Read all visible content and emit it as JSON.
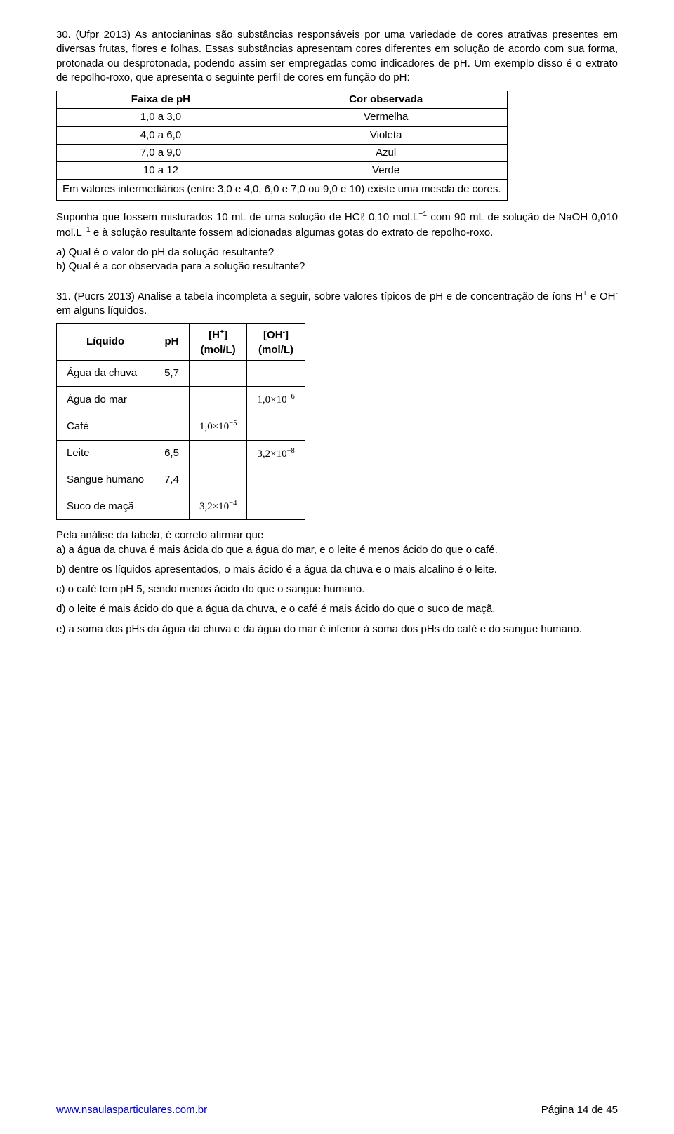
{
  "q30": {
    "heading": "30. (Ufpr 2013)  As antocianinas são substâncias responsáveis por uma variedade de cores atrativas presentes em diversas frutas, flores e folhas. Essas substâncias apresentam cores diferentes em solução de acordo com sua forma, protonada ou desprotonada, podendo assim ser empregadas como indicadores de pH. Um exemplo disso é o extrato de repolho-roxo, que apresenta o seguinte perfil de cores em função do pH:",
    "table": {
      "headers": [
        "Faixa de pH",
        "Cor observada"
      ],
      "rows": [
        [
          "1,0 a 3,0",
          "Vermelha"
        ],
        [
          "4,0 a 6,0",
          "Violeta"
        ],
        [
          "7,0 a 9,0",
          "Azul"
        ],
        [
          "10 a 12",
          "Verde"
        ]
      ],
      "note": "Em valores intermediários (entre 3,0 e 4,0, 6,0 e 7,0 ou 9,0 e 10) existe uma mescla de cores."
    },
    "after_table_p1a": "Suponha que fossem misturados 10 mL de uma solução de HCℓ 0,10 mol.L",
    "after_table_p1b": " com 90 mL de solução de NaOH 0,010 mol.L",
    "after_table_p1c": " e à solução resultante fossem adicionadas algumas gotas do extrato de repolho-roxo.",
    "qa": "a) Qual é o valor do pH da solução resultante?",
    "qb": "b) Qual é a cor observada para a solução resultante?"
  },
  "q31": {
    "heading_a": "31. ",
    "heading_b": "(Pucrs 2013)  Analise a tabela incompleta a seguir, sobre valores típicos de pH e de concentração de íons H",
    "heading_c": " e OH",
    "heading_d": " em alguns líquidos.",
    "table": {
      "headers": [
        "Líquido",
        "pH",
        "[H+]\n(mol/L)",
        "[OH-]\n(mol/L)"
      ],
      "rows": [
        {
          "name": "Água da chuva",
          "ph": "5,7",
          "h": "",
          "oh": ""
        },
        {
          "name": "Água do mar",
          "ph": "",
          "h": "",
          "oh": "1,0×10⁻⁶"
        },
        {
          "name": "Café",
          "ph": "",
          "h": "1,0×10⁻⁵",
          "oh": ""
        },
        {
          "name": "Leite",
          "ph": "6,5",
          "h": "",
          "oh": "3,2×10⁻⁸"
        },
        {
          "name": "Sangue humano",
          "ph": "7,4",
          "h": "",
          "oh": ""
        },
        {
          "name": "Suco de maçã",
          "ph": "",
          "h": "3,2×10⁻⁴",
          "oh": ""
        }
      ]
    },
    "after": "Pela análise da tabela, é correto afirmar que",
    "opts": {
      "a": "a) a água da chuva é mais ácida do que a água do mar, e o leite é menos ácido do que o café.",
      "b": "b) dentre os líquidos apresentados, o mais ácido é a água da chuva e o mais alcalino é o leite.",
      "c": "c) o café tem pH 5, sendo menos ácido do que o sangue humano.",
      "d": "d) o leite é mais ácido do que a água da chuva, e o café é mais ácido do que o suco de maçã.",
      "e": "e) a soma dos pHs da água da chuva e da água do mar é inferior à soma dos pHs do café e do sangue humano."
    }
  },
  "footer": {
    "url": "www.nsaulasparticulares.com.br",
    "page": "Página 14 de 45"
  },
  "style": {
    "sci": {
      "base": "1,0",
      "ten": "10",
      "exp6": "−6",
      "exp5": "−5",
      "exp8": "−8",
      "exp4": "−4",
      "b32": "3,2"
    }
  }
}
